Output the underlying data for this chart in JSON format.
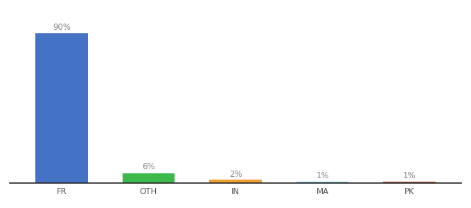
{
  "categories": [
    "FR",
    "OTH",
    "IN",
    "MA",
    "PK"
  ],
  "values": [
    90,
    6,
    2,
    1,
    1
  ],
  "bar_colors": [
    "#4472c4",
    "#3db84a",
    "#f0a030",
    "#87ceeb",
    "#b85c38"
  ],
  "labels": [
    "90%",
    "6%",
    "2%",
    "1%",
    "1%"
  ],
  "ylim": [
    0,
    100
  ],
  "background_color": "#ffffff",
  "label_fontsize": 8.5,
  "tick_fontsize": 8.5,
  "label_color": "#888888",
  "tick_color": "#555555",
  "bar_width": 0.6
}
